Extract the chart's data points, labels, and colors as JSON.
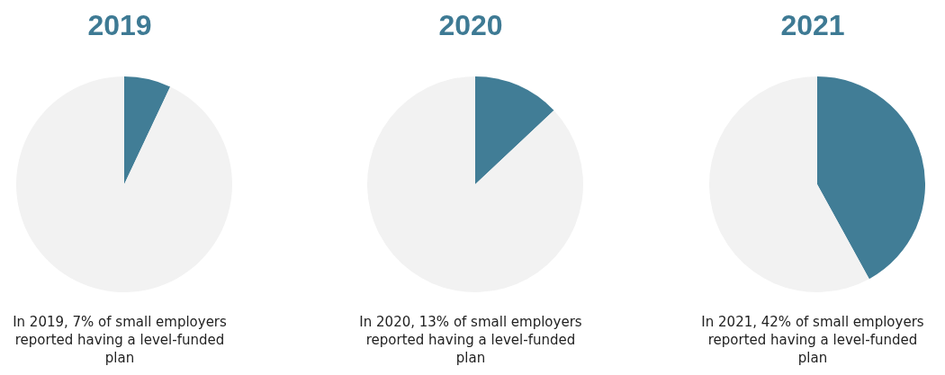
{
  "chart_data": [
    {
      "type": "pie",
      "title": "2019",
      "categories": [
        null,
        null
      ],
      "values": [
        7,
        93
      ],
      "colors": [
        "#417d96",
        "#f2f2f2"
      ],
      "annotations": [
        "In 2019, 7% of small employers reported having a level-funded plan"
      ]
    },
    {
      "type": "pie",
      "title": "2020",
      "categories": [
        null,
        null
      ],
      "values": [
        13,
        87
      ],
      "colors": [
        "#417d96",
        "#f2f2f2"
      ],
      "annotations": [
        "In 2020, 13% of small employers reported having a level-funded plan"
      ]
    },
    {
      "type": "pie",
      "title": "2021",
      "categories": [
        null,
        null
      ],
      "values": [
        42,
        58
      ],
      "colors": [
        "#417d96",
        "#f2f2f2"
      ],
      "annotations": [
        "In 2021, 42% of small employers reported having a level-funded plan"
      ]
    }
  ]
}
